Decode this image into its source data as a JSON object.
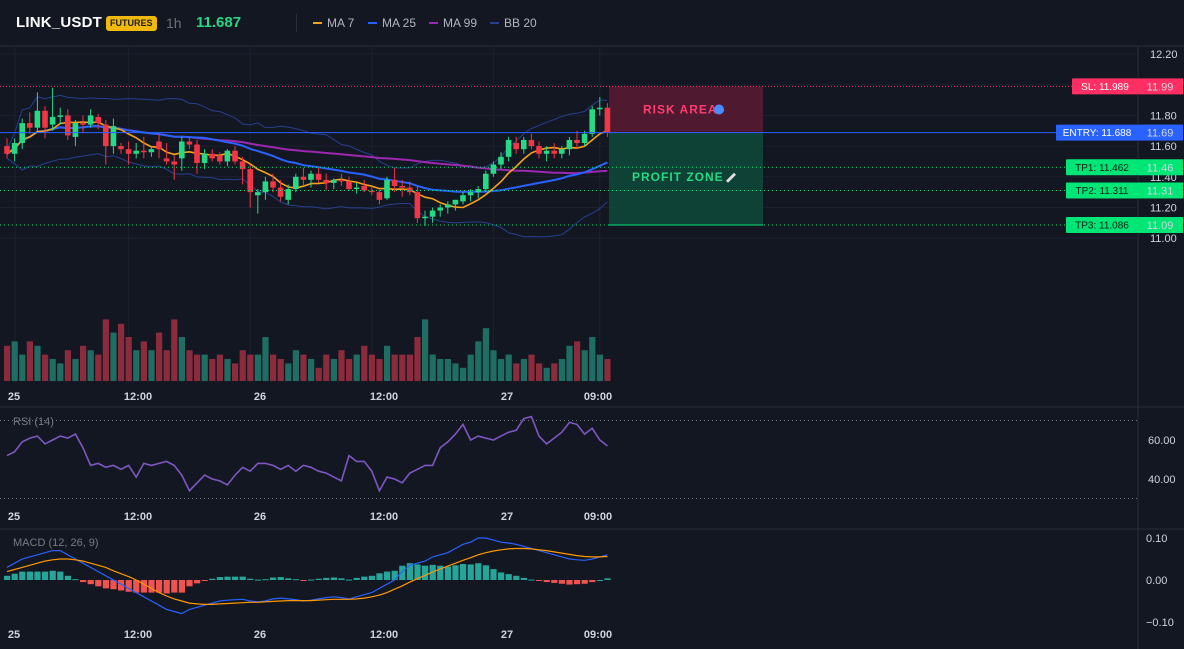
{
  "header": {
    "symbol": "LINK_USDT",
    "market_badge": "FUTURES",
    "timeframe": "1h",
    "last_price": "11.687",
    "legend": [
      {
        "label": "MA 7",
        "color": "#f7a21b"
      },
      {
        "label": "MA 25",
        "color": "#2962ff"
      },
      {
        "label": "MA 99",
        "color": "#9c27b0"
      },
      {
        "label": "BB 20",
        "color": "#283f8f"
      }
    ]
  },
  "colors": {
    "up": "#26d984",
    "down": "#f23645",
    "vol_up": "#1f6e63",
    "vol_down": "#8c2b3c",
    "sl": "#ff2e63",
    "entry": "#2962ff",
    "tp": "#00e676"
  },
  "zones": {
    "risk_label": "RISK AREA",
    "profit_label": "PROFIT ZONE"
  },
  "levels": [
    {
      "name": "sl",
      "label": "SL: 11.989",
      "price": 11.989,
      "axis": "11.99"
    },
    {
      "name": "entry",
      "label": "ENTRY: 11.688",
      "price": 11.688,
      "axis": "11.69"
    },
    {
      "name": "tp1",
      "label": "TP1: 11.462",
      "price": 11.462,
      "axis": "11.46"
    },
    {
      "name": "tp2",
      "label": "TP2: 11.311",
      "price": 11.311,
      "axis": "11.31"
    },
    {
      "name": "tp3",
      "label": "TP3: 11.086",
      "price": 11.086,
      "axis": "11.09"
    }
  ],
  "time_axis": [
    "25",
    "12:00",
    "26",
    "12:00",
    "27",
    "09:00"
  ],
  "chart_data": [
    {
      "type": "candlestick",
      "title": "LINK_USDT 1h",
      "price_axis": [
        "12.20",
        "12.00",
        "11.80",
        "11.60",
        "11.40",
        "11.20",
        "11.00"
      ],
      "ylim": [
        10.96,
        12.24
      ],
      "candles": [
        [
          11.6,
          11.65,
          11.52,
          11.55
        ],
        [
          11.55,
          11.65,
          11.5,
          11.62
        ],
        [
          11.62,
          11.78,
          11.58,
          11.75
        ],
        [
          11.75,
          11.82,
          11.68,
          11.72
        ],
        [
          11.72,
          11.95,
          11.7,
          11.83
        ],
        [
          11.83,
          11.86,
          11.65,
          11.72
        ],
        [
          11.74,
          11.98,
          11.7,
          11.79
        ],
        [
          11.79,
          11.85,
          11.74,
          11.8
        ],
        [
          11.8,
          11.84,
          11.64,
          11.67
        ],
        [
          11.66,
          11.77,
          11.6,
          11.75
        ],
        [
          11.75,
          11.8,
          11.69,
          11.74
        ],
        [
          11.74,
          11.84,
          11.72,
          11.8
        ],
        [
          11.79,
          11.81,
          11.71,
          11.75
        ],
        [
          11.74,
          11.77,
          11.48,
          11.6
        ],
        [
          11.6,
          11.78,
          11.55,
          11.73
        ],
        [
          11.6,
          11.62,
          11.55,
          11.58
        ],
        [
          11.58,
          11.63,
          11.48,
          11.55
        ],
        [
          11.55,
          11.62,
          11.52,
          11.57
        ],
        [
          11.57,
          11.66,
          11.52,
          11.56
        ],
        [
          11.56,
          11.6,
          11.53,
          11.58
        ],
        [
          11.63,
          11.68,
          11.52,
          11.58
        ],
        [
          11.52,
          11.62,
          11.48,
          11.5
        ],
        [
          11.5,
          11.54,
          11.38,
          11.48
        ],
        [
          11.52,
          11.66,
          11.44,
          11.63
        ],
        [
          11.63,
          11.66,
          11.58,
          11.61
        ],
        [
          11.61,
          11.64,
          11.42,
          11.49
        ],
        [
          11.49,
          11.58,
          11.45,
          11.55
        ],
        [
          11.55,
          11.58,
          11.5,
          11.52
        ],
        [
          11.54,
          11.56,
          11.48,
          11.5
        ],
        [
          11.5,
          11.58,
          11.47,
          11.57
        ],
        [
          11.57,
          11.6,
          11.48,
          11.5
        ],
        [
          11.5,
          11.53,
          11.35,
          11.45
        ],
        [
          11.45,
          11.48,
          11.2,
          11.3
        ],
        [
          11.28,
          11.32,
          11.16,
          11.3
        ],
        [
          11.3,
          11.4,
          11.25,
          11.37
        ],
        [
          11.37,
          11.42,
          11.3,
          11.33
        ],
        [
          11.33,
          11.38,
          11.24,
          11.27
        ],
        [
          11.25,
          11.35,
          11.22,
          11.32
        ],
        [
          11.32,
          11.42,
          11.3,
          11.4
        ],
        [
          11.4,
          11.46,
          11.34,
          11.38
        ],
        [
          11.38,
          11.44,
          11.33,
          11.42
        ],
        [
          11.42,
          11.46,
          11.36,
          11.38
        ],
        [
          11.38,
          11.42,
          11.31,
          11.36
        ],
        [
          11.36,
          11.39,
          11.32,
          11.38
        ],
        [
          11.38,
          11.42,
          11.34,
          11.37
        ],
        [
          11.37,
          11.4,
          11.31,
          11.32
        ],
        [
          11.32,
          11.36,
          11.29,
          11.33
        ],
        [
          11.34,
          11.38,
          11.3,
          11.31
        ],
        [
          11.31,
          11.34,
          11.28,
          11.3
        ],
        [
          11.3,
          11.32,
          11.22,
          11.25
        ],
        [
          11.26,
          11.4,
          11.25,
          11.38
        ],
        [
          11.38,
          11.46,
          11.3,
          11.34
        ],
        [
          11.34,
          11.38,
          11.27,
          11.33
        ],
        [
          11.33,
          11.37,
          11.28,
          11.3
        ],
        [
          11.3,
          11.34,
          11.1,
          11.13
        ],
        [
          11.13,
          11.18,
          11.08,
          11.14
        ],
        [
          11.14,
          11.2,
          11.1,
          11.18
        ],
        [
          11.18,
          11.22,
          11.14,
          11.2
        ],
        [
          11.2,
          11.24,
          11.16,
          11.22
        ],
        [
          11.22,
          11.25,
          11.18,
          11.25
        ],
        [
          11.24,
          11.3,
          11.22,
          11.28
        ],
        [
          11.28,
          11.32,
          11.24,
          11.3
        ],
        [
          11.3,
          11.34,
          11.26,
          11.32
        ],
        [
          11.32,
          11.44,
          11.3,
          11.42
        ],
        [
          11.42,
          11.5,
          11.4,
          11.48
        ],
        [
          11.48,
          11.56,
          11.45,
          11.53
        ],
        [
          11.53,
          11.66,
          11.5,
          11.64
        ],
        [
          11.62,
          11.66,
          11.55,
          11.58
        ],
        [
          11.58,
          11.66,
          11.55,
          11.64
        ],
        [
          11.64,
          11.68,
          11.58,
          11.6
        ],
        [
          11.6,
          11.63,
          11.52,
          11.55
        ],
        [
          11.55,
          11.6,
          11.5,
          11.57
        ],
        [
          11.57,
          11.62,
          11.52,
          11.55
        ],
        [
          11.55,
          11.6,
          11.52,
          11.58
        ],
        [
          11.58,
          11.66,
          11.54,
          11.64
        ],
        [
          11.64,
          11.7,
          11.58,
          11.62
        ],
        [
          11.62,
          11.7,
          11.6,
          11.68
        ],
        [
          11.68,
          11.86,
          11.66,
          11.84
        ],
        [
          11.84,
          11.92,
          11.8,
          11.85
        ],
        [
          11.85,
          11.88,
          11.66,
          11.69
        ]
      ],
      "volumes": [
        8,
        9,
        6,
        9,
        8,
        6,
        5,
        4,
        7,
        5,
        8,
        7,
        6,
        14,
        11,
        13,
        10,
        7,
        9,
        7,
        11,
        7,
        14,
        10,
        7,
        6,
        6,
        5,
        6,
        5,
        4,
        7,
        6,
        6,
        10,
        6,
        5,
        4,
        7,
        6,
        5,
        3,
        6,
        5,
        7,
        5,
        6,
        8,
        6,
        5,
        8,
        6,
        6,
        6,
        10,
        14,
        6,
        5,
        5,
        4,
        3,
        6,
        9,
        12,
        7,
        5,
        6,
        4,
        5,
        6,
        4,
        3,
        4,
        5,
        8,
        9,
        7,
        10,
        6,
        5
      ]
    },
    {
      "type": "line",
      "title": "RSI (14)",
      "yticks": [
        "60.00",
        "40.00"
      ],
      "ylim": [
        28,
        76
      ],
      "values": [
        52,
        54,
        59,
        61,
        62,
        58,
        60,
        62,
        61,
        63,
        56,
        47,
        48,
        46,
        47,
        45,
        47,
        41,
        48,
        47,
        48,
        49,
        47,
        42,
        34,
        38,
        42,
        40,
        39,
        37,
        42,
        46,
        44,
        48,
        48,
        47,
        45,
        47,
        44,
        47,
        46,
        44,
        43,
        41,
        39,
        52,
        49,
        49,
        44,
        34,
        41,
        40,
        38,
        43,
        45,
        47,
        47,
        56,
        59,
        63,
        68,
        60,
        62,
        61,
        60,
        62,
        64,
        65,
        71,
        72,
        62,
        58,
        61,
        64,
        69,
        68,
        63,
        66,
        60,
        57
      ]
    },
    {
      "type": "histogram+line",
      "title": "MACD (12, 26, 9)",
      "yticks": [
        "0.10",
        "0.00",
        "−0.10"
      ],
      "ylim": [
        -0.12,
        0.12
      ],
      "macd": [
        0.03,
        0.04,
        0.05,
        0.055,
        0.06,
        0.065,
        0.07,
        0.07,
        0.06,
        0.05,
        0.04,
        0.03,
        0.02,
        0.01,
        0.0,
        -0.01,
        -0.02,
        -0.03,
        -0.04,
        -0.05,
        -0.06,
        -0.07,
        -0.075,
        -0.08,
        -0.07,
        -0.065,
        -0.06,
        -0.055,
        -0.05,
        -0.048,
        -0.047,
        -0.046,
        -0.05,
        -0.052,
        -0.05,
        -0.045,
        -0.043,
        -0.045,
        -0.047,
        -0.05,
        -0.048,
        -0.045,
        -0.042,
        -0.04,
        -0.042,
        -0.045,
        -0.04,
        -0.035,
        -0.03,
        -0.02,
        -0.01,
        0.0,
        0.02,
        0.035,
        0.04,
        0.045,
        0.055,
        0.06,
        0.065,
        0.075,
        0.085,
        0.09,
        0.1,
        0.1,
        0.095,
        0.09,
        0.088,
        0.085,
        0.08,
        0.075,
        0.07,
        0.065,
        0.06,
        0.055,
        0.05,
        0.048,
        0.047,
        0.05,
        0.055,
        0.06
      ],
      "signal": [
        0.02,
        0.025,
        0.03,
        0.035,
        0.04,
        0.045,
        0.048,
        0.05,
        0.05,
        0.048,
        0.045,
        0.04,
        0.035,
        0.03,
        0.022,
        0.015,
        0.008,
        0.0,
        -0.01,
        -0.02,
        -0.03,
        -0.038,
        -0.045,
        -0.05,
        -0.055,
        -0.057,
        -0.058,
        -0.058,
        -0.057,
        -0.056,
        -0.055,
        -0.054,
        -0.053,
        -0.053,
        -0.052,
        -0.051,
        -0.05,
        -0.049,
        -0.049,
        -0.049,
        -0.049,
        -0.048,
        -0.047,
        -0.046,
        -0.046,
        -0.046,
        -0.045,
        -0.043,
        -0.04,
        -0.036,
        -0.03,
        -0.022,
        -0.014,
        -0.005,
        0.003,
        0.011,
        0.019,
        0.026,
        0.033,
        0.04,
        0.047,
        0.053,
        0.06,
        0.065,
        0.069,
        0.072,
        0.074,
        0.075,
        0.075,
        0.074,
        0.072,
        0.07,
        0.067,
        0.064,
        0.061,
        0.058,
        0.056,
        0.055,
        0.055,
        0.056
      ],
      "hist": [
        0.01,
        0.015,
        0.02,
        0.02,
        0.02,
        0.02,
        0.022,
        0.02,
        0.01,
        0.002,
        -0.005,
        -0.01,
        -0.015,
        -0.02,
        -0.022,
        -0.025,
        -0.028,
        -0.03,
        -0.03,
        -0.03,
        -0.03,
        -0.032,
        -0.03,
        -0.03,
        -0.015,
        -0.008,
        -0.002,
        0.003,
        0.007,
        0.008,
        0.008,
        0.008,
        0.003,
        0.001,
        0.002,
        0.006,
        0.007,
        0.004,
        0.002,
        -0.001,
        0.001,
        0.003,
        0.005,
        0.006,
        0.004,
        0.001,
        0.005,
        0.008,
        0.01,
        0.016,
        0.02,
        0.022,
        0.034,
        0.04,
        0.037,
        0.034,
        0.036,
        0.034,
        0.032,
        0.035,
        0.038,
        0.037,
        0.04,
        0.035,
        0.026,
        0.018,
        0.014,
        0.01,
        0.005,
        0.001,
        -0.002,
        -0.005,
        -0.007,
        -0.009,
        -0.011,
        -0.01,
        -0.009,
        -0.005,
        0.0,
        0.004
      ]
    }
  ]
}
